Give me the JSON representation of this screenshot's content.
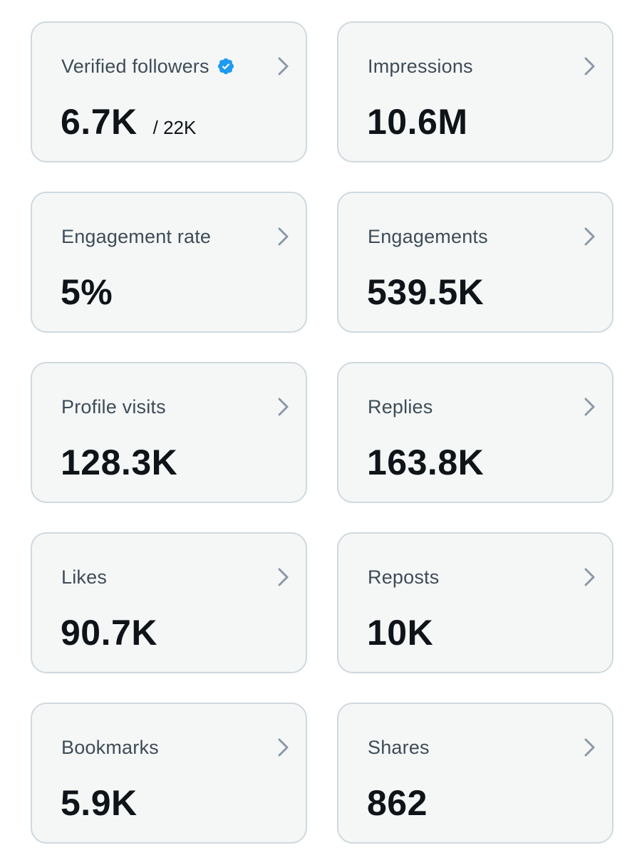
{
  "colors": {
    "card_bg": "#f5f7f7",
    "card_border": "#cfd9de",
    "label_text": "#3f4c57",
    "value_text": "#0f1419",
    "chevron": "#8b98a5",
    "verified_badge": "#1d9bf0"
  },
  "metrics": [
    {
      "label": "Verified followers",
      "value": "6.7K",
      "sub_value": "/ 22K",
      "icon": "verified-badge-icon"
    },
    {
      "label": "Impressions",
      "value": "10.6M"
    },
    {
      "label": "Engagement rate",
      "value": "5%"
    },
    {
      "label": "Engagements",
      "value": "539.5K"
    },
    {
      "label": "Profile visits",
      "value": "128.3K"
    },
    {
      "label": "Replies",
      "value": "163.8K"
    },
    {
      "label": "Likes",
      "value": "90.7K"
    },
    {
      "label": "Reposts",
      "value": "10K"
    },
    {
      "label": "Bookmarks",
      "value": "5.9K"
    },
    {
      "label": "Shares",
      "value": "862"
    }
  ]
}
